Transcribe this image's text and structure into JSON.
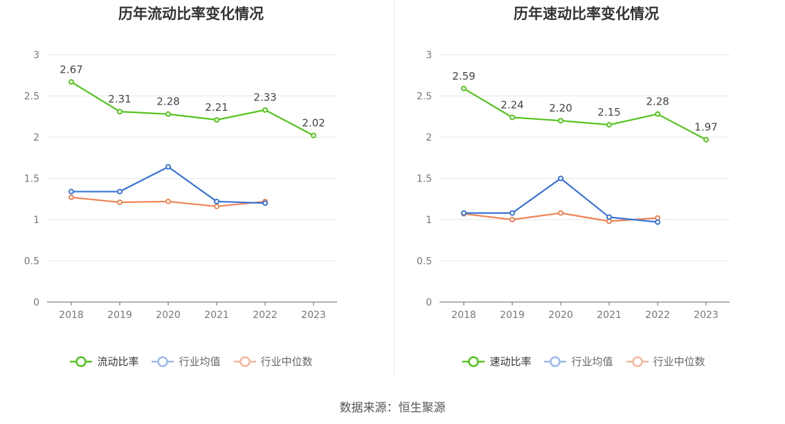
{
  "chart_data": [
    {
      "type": "line",
      "title": "历年流动比率变化情况",
      "categories": [
        "2018",
        "2019",
        "2020",
        "2021",
        "2022",
        "2023"
      ],
      "ylim": [
        0,
        3
      ],
      "yticks": [
        "0",
        "0.5",
        "1",
        "1.5",
        "2",
        "2.5",
        "3"
      ],
      "grid": true,
      "legend_position": "bottom",
      "series": [
        {
          "name": "流动比率",
          "color": "#52c41a",
          "values": [
            2.67,
            2.31,
            2.28,
            2.21,
            2.33,
            2.02
          ],
          "labels": [
            "2.67",
            "2.31",
            "2.28",
            "2.21",
            "2.33",
            "2.02"
          ]
        },
        {
          "name": "行业均值",
          "color": "#3572d9",
          "values": [
            1.34,
            1.34,
            1.64,
            1.22,
            1.2,
            null
          ]
        },
        {
          "name": "行业中位数",
          "color": "#ef8354",
          "values": [
            1.27,
            1.21,
            1.22,
            1.16,
            1.22,
            null
          ]
        }
      ]
    },
    {
      "type": "line",
      "title": "历年速动比率变化情况",
      "categories": [
        "2018",
        "2019",
        "2020",
        "2021",
        "2022",
        "2023"
      ],
      "ylim": [
        0,
        3
      ],
      "yticks": [
        "0",
        "0.5",
        "1",
        "1.5",
        "2",
        "2.5",
        "3"
      ],
      "grid": true,
      "legend_position": "bottom",
      "series": [
        {
          "name": "速动比率",
          "color": "#52c41a",
          "values": [
            2.59,
            2.24,
            2.2,
            2.15,
            2.28,
            1.97
          ],
          "labels": [
            "2.59",
            "2.24",
            "2.20",
            "2.15",
            "2.28",
            "1.97"
          ]
        },
        {
          "name": "行业均值",
          "color": "#3572d9",
          "values": [
            1.08,
            1.08,
            1.5,
            1.03,
            0.97,
            null
          ]
        },
        {
          "name": "行业中位数",
          "color": "#ef8354",
          "values": [
            1.07,
            1.0,
            1.08,
            0.98,
            1.02,
            null
          ]
        }
      ]
    }
  ],
  "source": "数据来源：恒生聚源"
}
